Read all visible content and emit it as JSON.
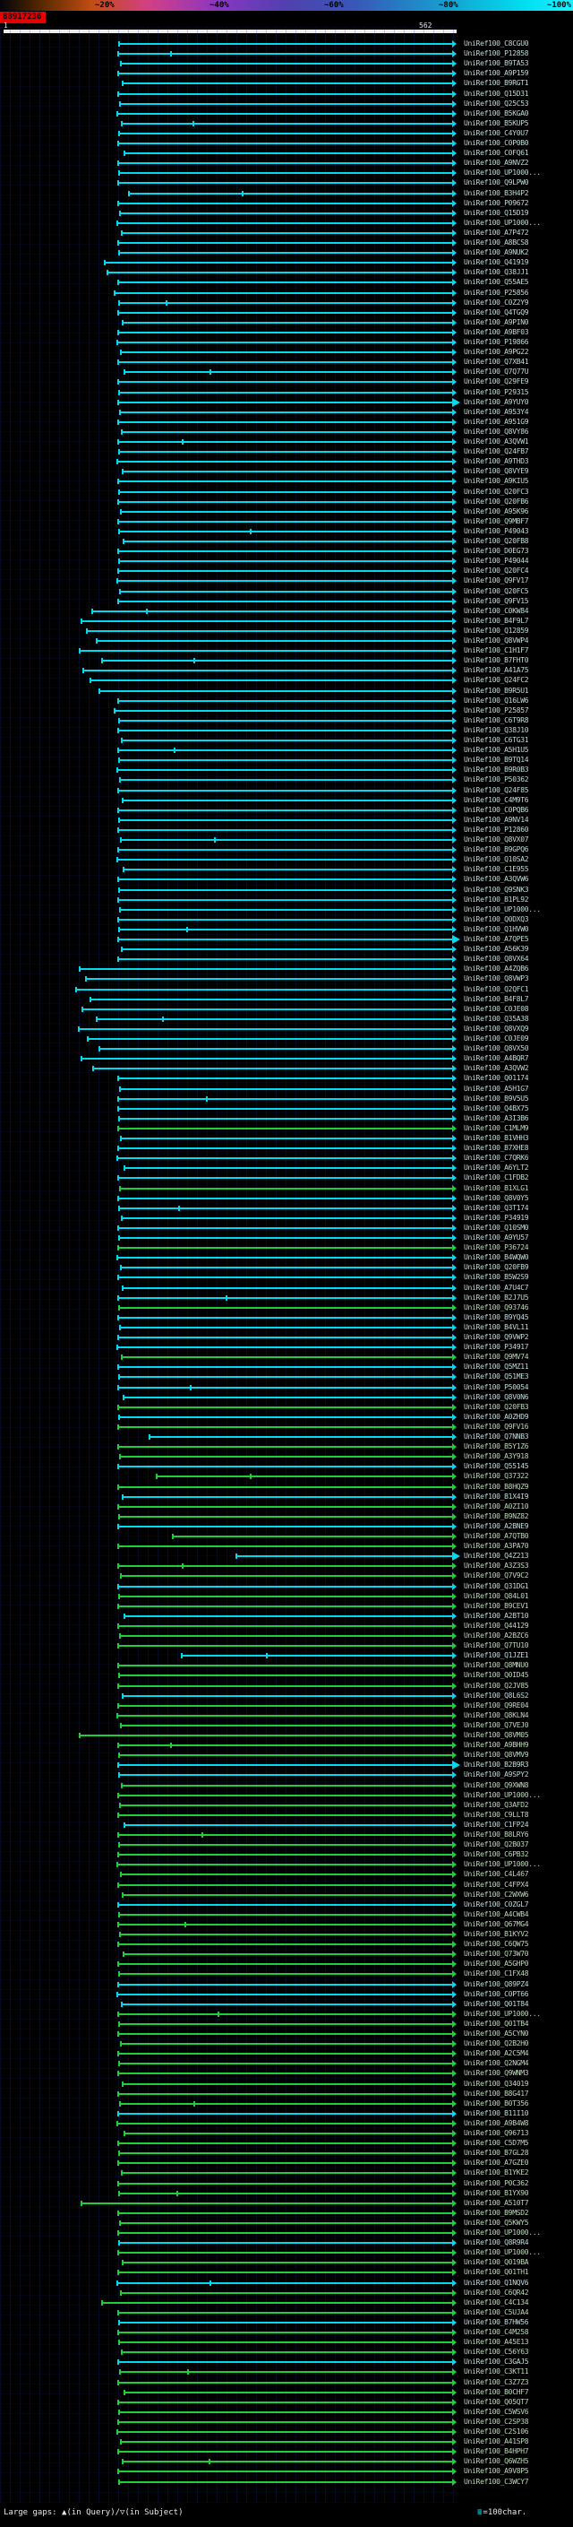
{
  "header": {
    "key_labels": [
      "~20%",
      "~40%",
      "~60%",
      "~80%",
      "~100%"
    ],
    "key_stops": [
      [
        "#04040c",
        0
      ],
      [
        "#552800",
        7
      ],
      [
        "#c24d12",
        16
      ],
      [
        "#d23f86",
        26
      ],
      [
        "#8a36c2",
        38
      ],
      [
        "#5040b0",
        50
      ],
      [
        "#3858b8",
        62
      ],
      [
        "#15a0d0",
        78
      ],
      [
        "#00e0f2",
        92
      ],
      [
        "#20f0ff",
        100
      ]
    ],
    "query_id": "88917236",
    "query_id_bg": "#e60000",
    "query_start": "1",
    "query_end": "562",
    "query_bar_color": "#ededed"
  },
  "legend": {
    "left": "Large gaps: ▲(in Query)/▽(in Subject)",
    "sample": "≡",
    "right": "=100char.",
    "sample_color": "#00e0f2"
  },
  "colors": {
    "cyan": "#00d9ee",
    "green": "#1ecf3a",
    "label_c": "#c2dcda",
    "label_g": "#bfd9bc"
  },
  "chart_data": {
    "type": "alignment-overview",
    "query_length": 562,
    "label_prefix": "UniRef100_",
    "rows": [
      [
        "C8CGU0",
        146,
        "c"
      ],
      [
        "P12858",
        144,
        "c",
        0,
        [
          210
        ]
      ],
      [
        "B9TA53",
        148,
        "c"
      ],
      [
        "A9P159",
        144,
        "c"
      ],
      [
        "B9RGT1",
        150,
        "c"
      ],
      [
        "Q15D31",
        144,
        "c"
      ],
      [
        "Q25C53",
        147,
        "c"
      ],
      [
        "B5KGA0",
        143,
        "c"
      ],
      [
        "B5KUP5",
        149,
        "c",
        0,
        [
          238
        ]
      ],
      [
        "C4Y0U7",
        145,
        "c"
      ],
      [
        "C0P0B0",
        144,
        "c"
      ],
      [
        "C0FQ61",
        152,
        "c"
      ],
      [
        "A9NVZ2",
        144,
        "c"
      ],
      [
        "UP1000...",
        146,
        "c"
      ],
      [
        "Q9LPW0",
        144,
        "c"
      ],
      [
        "B3H4P2",
        158,
        "c",
        0,
        [
          300
        ]
      ],
      [
        "P09672",
        144,
        "c"
      ],
      [
        "Q15D19",
        147,
        "c"
      ],
      [
        "UP1000...",
        143,
        "c"
      ],
      [
        "A7P472",
        149,
        "c"
      ],
      [
        "A8BCS8",
        144,
        "c"
      ],
      [
        "A9NUK2",
        146,
        "c"
      ],
      [
        "Q41919",
        128,
        "c"
      ],
      [
        "Q38JJ1",
        131,
        "c"
      ],
      [
        "Q55AE5",
        144,
        "c"
      ],
      [
        "P25856",
        140,
        "c"
      ],
      [
        "C0Z2Y9",
        146,
        "c",
        0,
        [
          205
        ]
      ],
      [
        "Q4TGQ9",
        144,
        "c"
      ],
      [
        "A9PIN0",
        150,
        "c"
      ],
      [
        "A9BF03",
        144,
        "c"
      ],
      [
        "P19866",
        143,
        "c"
      ],
      [
        "A9PG22",
        148,
        "c"
      ],
      [
        "Q7XB41",
        144,
        "c"
      ],
      [
        "Q7Q77U",
        152,
        "c",
        0,
        [
          260
        ]
      ],
      [
        "Q29FE9",
        144,
        "c"
      ],
      [
        "P29315",
        146,
        "c"
      ],
      [
        "A9YUY0",
        144,
        "c",
        1
      ],
      [
        "A953Y4",
        147,
        "c"
      ],
      [
        "A951G9",
        144,
        "c"
      ],
      [
        "Q8VY86",
        149,
        "c"
      ],
      [
        "A3QVW1",
        144,
        "c",
        0,
        [
          225
        ]
      ],
      [
        "Q24FB7",
        145,
        "c"
      ],
      [
        "A9THD3",
        143,
        "c"
      ],
      [
        "Q8VYE9",
        150,
        "c"
      ],
      [
        "A9KIU5",
        144,
        "c"
      ],
      [
        "Q20FC3",
        146,
        "c"
      ],
      [
        "Q20FB6",
        144,
        "c"
      ],
      [
        "A95K96",
        148,
        "c"
      ],
      [
        "Q9MBF7",
        144,
        "c"
      ],
      [
        "P49043",
        145,
        "c",
        0,
        [
          310
        ]
      ],
      [
        "Q20FB8",
        151,
        "c"
      ],
      [
        "D0EG73",
        144,
        "c"
      ],
      [
        "P49044",
        146,
        "c"
      ],
      [
        "Q20FC4",
        144,
        "c"
      ],
      [
        "Q9FV17",
        143,
        "c"
      ],
      [
        "Q20FC5",
        147,
        "c"
      ],
      [
        "Q9FV15",
        144,
        "c"
      ],
      [
        "C0KW84",
        112,
        "c",
        0,
        [
          180
        ]
      ],
      [
        "B4F9L7",
        98,
        "c"
      ],
      [
        "Q12859",
        105,
        "c"
      ],
      [
        "Q8VWP4",
        118,
        "c"
      ],
      [
        "C1H1F7",
        96,
        "c"
      ],
      [
        "B7FHT0",
        124,
        "c",
        0,
        [
          240
        ]
      ],
      [
        "A41A75",
        101,
        "c"
      ],
      [
        "Q24FC2",
        110,
        "c"
      ],
      [
        "B9R5U1",
        121,
        "c"
      ],
      [
        "Q16LW6",
        144,
        "c"
      ],
      [
        "P25857",
        140,
        "c"
      ],
      [
        "C6T9R8",
        146,
        "c"
      ],
      [
        "Q38J10",
        144,
        "c"
      ],
      [
        "C6TG31",
        149,
        "c"
      ],
      [
        "A5H1U5",
        144,
        "c",
        0,
        [
          215
        ]
      ],
      [
        "B9TQ14",
        145,
        "c"
      ],
      [
        "B9R0B3",
        143,
        "c"
      ],
      [
        "P50362",
        147,
        "c"
      ],
      [
        "Q24F85",
        144,
        "c"
      ],
      [
        "C4M9T6",
        150,
        "c"
      ],
      [
        "C0PQB6",
        144,
        "c"
      ],
      [
        "A9NV14",
        146,
        "c"
      ],
      [
        "P12860",
        144,
        "c"
      ],
      [
        "Q8VX07",
        148,
        "c",
        0,
        [
          265
        ]
      ],
      [
        "B9GPQ6",
        144,
        "c"
      ],
      [
        "Q10SA2",
        143,
        "c"
      ],
      [
        "C1E955",
        151,
        "c"
      ],
      [
        "A3QVW6",
        144,
        "c"
      ],
      [
        "Q9SNK3",
        146,
        "c"
      ],
      [
        "B1PL92",
        144,
        "c"
      ],
      [
        "UP1000...",
        147,
        "c"
      ],
      [
        "Q0DXQ3",
        144,
        "c"
      ],
      [
        "Q1HVW0",
        145,
        "c",
        0,
        [
          230
        ]
      ],
      [
        "A7QPE5",
        144,
        "c",
        1
      ],
      [
        "A56K39",
        149,
        "c"
      ],
      [
        "Q8VX64",
        144,
        "c"
      ],
      [
        "A4ZQB6",
        96,
        "c"
      ],
      [
        "Q8VWP3",
        104,
        "c"
      ],
      [
        "Q2QFC1",
        92,
        "c"
      ],
      [
        "B4F8L7",
        110,
        "c"
      ],
      [
        "C0JE08",
        99,
        "c"
      ],
      [
        "Q35A38",
        117,
        "c",
        0,
        [
          200
        ]
      ],
      [
        "Q8VXQ9",
        95,
        "c"
      ],
      [
        "C0JE09",
        106,
        "c"
      ],
      [
        "Q8VX50",
        121,
        "c"
      ],
      [
        "A4BQR7",
        98,
        "c"
      ],
      [
        "A3QVW2",
        113,
        "c"
      ],
      [
        "Q01174",
        144,
        "c"
      ],
      [
        "A5H1G7",
        147,
        "c"
      ],
      [
        "B9V5U5",
        144,
        "c",
        0,
        [
          255
        ]
      ],
      [
        "Q4BX75",
        144,
        "c"
      ],
      [
        "A3I3B6",
        146,
        "c"
      ],
      [
        "C1MLM9",
        144,
        "g"
      ],
      [
        "B1VHH3",
        148,
        "c"
      ],
      [
        "B7XHE8",
        144,
        "c"
      ],
      [
        "C7QRK6",
        143,
        "c"
      ],
      [
        "A6YLT2",
        152,
        "c"
      ],
      [
        "C1FDB2",
        144,
        "c"
      ],
      [
        "B1XLG1",
        147,
        "g"
      ],
      [
        "Q8V0Y5",
        144,
        "c"
      ],
      [
        "Q3T174",
        145,
        "c",
        0,
        [
          220
        ]
      ],
      [
        "P34919",
        149,
        "c"
      ],
      [
        "Q10SM0",
        144,
        "c"
      ],
      [
        "A9YU57",
        146,
        "c"
      ],
      [
        "P36724",
        144,
        "g"
      ],
      [
        "B4WQW0",
        143,
        "c"
      ],
      [
        "Q20FB9",
        148,
        "c"
      ],
      [
        "B5W2S9",
        144,
        "c"
      ],
      [
        "A7U4C7",
        150,
        "c"
      ],
      [
        "B2J7U5",
        144,
        "c",
        0,
        [
          280
        ]
      ],
      [
        "Q93746",
        145,
        "g"
      ],
      [
        "B9YQ45",
        144,
        "c"
      ],
      [
        "B4VL11",
        147,
        "c"
      ],
      [
        "Q9VWP2",
        144,
        "c"
      ],
      [
        "P34917",
        143,
        "c"
      ],
      [
        "Q9MV74",
        149,
        "g"
      ],
      [
        "Q5MZ11",
        144,
        "c"
      ],
      [
        "Q51ME3",
        146,
        "c"
      ],
      [
        "P50054",
        144,
        "c",
        0,
        [
          235
        ]
      ],
      [
        "Q8V0N6",
        151,
        "c"
      ],
      [
        "Q20FB3",
        144,
        "g"
      ],
      [
        "A0ZHD9",
        145,
        "c"
      ],
      [
        "Q9FV16",
        144,
        "g"
      ],
      [
        "Q7NNB3",
        183,
        "c"
      ],
      [
        "B5Y1Z6",
        144,
        "g"
      ],
      [
        "A3Y918",
        147,
        "g"
      ],
      [
        "Q55145",
        144,
        "c"
      ],
      [
        "Q37322",
        192,
        "g",
        0,
        [
          310
        ]
      ],
      [
        "B8HQZ9",
        144,
        "g"
      ],
      [
        "B1X4I9",
        150,
        "c"
      ],
      [
        "A0ZI10",
        144,
        "g"
      ],
      [
        "B9NZ82",
        146,
        "g"
      ],
      [
        "A2BNE9",
        144,
        "c"
      ],
      [
        "A7QTB0",
        213,
        "g"
      ],
      [
        "A3PA70",
        144,
        "g"
      ],
      [
        "Q4Z213",
        292,
        "c",
        1
      ],
      [
        "A3Z3S3",
        144,
        "g",
        0,
        [
          225
        ]
      ],
      [
        "Q7V9C2",
        148,
        "g"
      ],
      [
        "Q31DG1",
        144,
        "c"
      ],
      [
        "Q84L01",
        145,
        "g"
      ],
      [
        "B9CEV1",
        144,
        "g"
      ],
      [
        "A2BT10",
        152,
        "c"
      ],
      [
        "Q44129",
        144,
        "g"
      ],
      [
        "A2BZC6",
        147,
        "g"
      ],
      [
        "Q7TU10",
        144,
        "g"
      ],
      [
        "Q1JZE1",
        224,
        "c",
        0,
        [
          330
        ]
      ],
      [
        "Q8MNU0",
        144,
        "g"
      ],
      [
        "Q0ID45",
        146,
        "g"
      ],
      [
        "Q2JV85",
        144,
        "g"
      ],
      [
        "Q8L6S2",
        150,
        "c"
      ],
      [
        "Q9RE04",
        144,
        "g"
      ],
      [
        "Q8KLN4",
        143,
        "g"
      ],
      [
        "Q7VEJ0",
        148,
        "g"
      ],
      [
        "Q8VM05",
        96,
        "g"
      ],
      [
        "A9BHH9",
        144,
        "g",
        0,
        [
          210
        ]
      ],
      [
        "Q8VMV9",
        146,
        "g"
      ],
      [
        "B2B9R3",
        144,
        "c",
        1
      ],
      [
        "A9SPY2",
        145,
        "c"
      ],
      [
        "Q9XWN8",
        149,
        "g"
      ],
      [
        "UP1000...",
        144,
        "g"
      ],
      [
        "Q3AFD2",
        147,
        "g"
      ],
      [
        "C9LLT8",
        144,
        "g"
      ],
      [
        "C1FP24",
        152,
        "c"
      ],
      [
        "B8LRY6",
        144,
        "g",
        0,
        [
          250
        ]
      ],
      [
        "Q2B037",
        146,
        "g"
      ],
      [
        "C6PB32",
        144,
        "g"
      ],
      [
        "UP1000...",
        143,
        "g"
      ],
      [
        "C4L467",
        148,
        "g"
      ],
      [
        "C4FPX4",
        144,
        "g"
      ],
      [
        "C2WXW6",
        150,
        "g"
      ],
      [
        "C0ZGL7",
        144,
        "c"
      ],
      [
        "A4CWB4",
        145,
        "g"
      ],
      [
        "Q67MG4",
        144,
        "g",
        0,
        [
          228
        ]
      ],
      [
        "B1KYV2",
        147,
        "g"
      ],
      [
        "C6QW75",
        144,
        "g"
      ],
      [
        "Q73W70",
        151,
        "g"
      ],
      [
        "A5GHP0",
        144,
        "g"
      ],
      [
        "C1FX48",
        146,
        "g"
      ],
      [
        "Q89PZ4",
        144,
        "c"
      ],
      [
        "C0PT66",
        143,
        "c"
      ],
      [
        "Q01T84",
        149,
        "c"
      ],
      [
        "UP1000...",
        144,
        "g",
        0,
        [
          270
        ]
      ],
      [
        "Q01TB4",
        145,
        "g"
      ],
      [
        "A5CYN0",
        144,
        "g"
      ],
      [
        "Q2B2H0",
        148,
        "g"
      ],
      [
        "A2C5M4",
        144,
        "g"
      ],
      [
        "Q2NGM4",
        146,
        "g"
      ],
      [
        "Q9WNM3",
        144,
        "g"
      ],
      [
        "Q34019",
        150,
        "g"
      ],
      [
        "B8G417",
        144,
        "g"
      ],
      [
        "B0T356",
        147,
        "g",
        0,
        [
          240
        ]
      ],
      [
        "B11I10",
        144,
        "c"
      ],
      [
        "A9B4W8",
        143,
        "g"
      ],
      [
        "Q96713",
        152,
        "g"
      ],
      [
        "C5D7M5",
        144,
        "g"
      ],
      [
        "B7GL28",
        146,
        "g"
      ],
      [
        "A7GZE0",
        144,
        "g"
      ],
      [
        "B1YKE2",
        149,
        "g"
      ],
      [
        "P0C362",
        144,
        "g"
      ],
      [
        "B1YX90",
        145,
        "g",
        0,
        [
          218
        ]
      ],
      [
        "A510T7",
        98,
        "g"
      ],
      [
        "B9MSD2",
        144,
        "g"
      ],
      [
        "Q5KWY5",
        147,
        "g"
      ],
      [
        "UP1000...",
        144,
        "g"
      ],
      [
        "Q8R9R4",
        146,
        "c"
      ],
      [
        "UP1000...",
        144,
        "g"
      ],
      [
        "Q019BA",
        150,
        "g"
      ],
      [
        "Q01TH1",
        144,
        "g"
      ],
      [
        "Q1NQV6",
        143,
        "c",
        0,
        [
          260
        ]
      ],
      [
        "C6QR42",
        148,
        "g"
      ],
      [
        "C4C134",
        124,
        "g"
      ],
      [
        "C5UJA4",
        144,
        "g"
      ],
      [
        "B7HW56",
        146,
        "c"
      ],
      [
        "C4M258",
        144,
        "g"
      ],
      [
        "A45E13",
        145,
        "g"
      ],
      [
        "C56Y63",
        149,
        "g"
      ],
      [
        "C3GAJ5",
        144,
        "c"
      ],
      [
        "C3KT11",
        147,
        "g",
        0,
        [
          232
        ]
      ],
      [
        "C3Z7Z3",
        144,
        "g"
      ],
      [
        "B0CHF7",
        152,
        "g"
      ],
      [
        "Q05QT7",
        144,
        "g"
      ],
      [
        "C5WSV6",
        146,
        "g"
      ],
      [
        "C2SP38",
        144,
        "g"
      ],
      [
        "C2S106",
        143,
        "g"
      ],
      [
        "A41SP8",
        148,
        "g"
      ],
      [
        "B4HPH7",
        144,
        "g"
      ],
      [
        "Q6WZH5",
        150,
        "g",
        0,
        [
          258
        ]
      ],
      [
        "A9V8P5",
        144,
        "g"
      ],
      [
        "C3WCY7",
        146,
        "g"
      ]
    ]
  }
}
